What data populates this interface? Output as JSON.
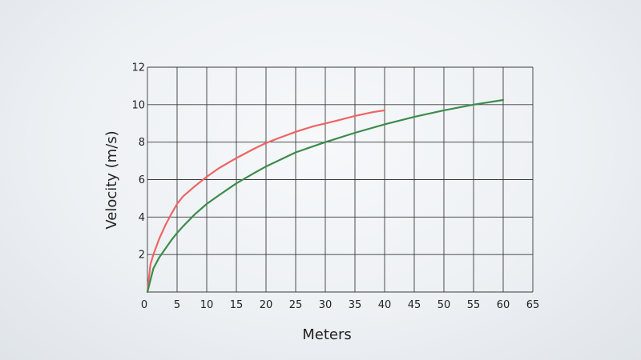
{
  "chart_data": {
    "type": "line",
    "title": "",
    "xlabel": "Meters",
    "ylabel": "Velocity (m/s)",
    "xlim": [
      0,
      65
    ],
    "ylim": [
      0,
      12
    ],
    "x_ticks": [
      0,
      5,
      10,
      15,
      20,
      25,
      30,
      35,
      40,
      45,
      50,
      55,
      60,
      65
    ],
    "y_ticks": [
      2,
      4,
      6,
      8,
      10,
      12
    ],
    "grid": true,
    "legend": "none",
    "series": [
      {
        "color": "#ee6464",
        "x": [
          0,
          0.5,
          1,
          2,
          3,
          4,
          5,
          6,
          8,
          10,
          12,
          15,
          18,
          20,
          22,
          25,
          28,
          30,
          32,
          35,
          38,
          40
        ],
        "y": [
          0,
          1.45,
          2.0,
          2.85,
          3.55,
          4.15,
          4.7,
          5.1,
          5.65,
          6.15,
          6.6,
          7.15,
          7.65,
          7.95,
          8.2,
          8.55,
          8.85,
          9.0,
          9.15,
          9.4,
          9.6,
          9.7
        ]
      },
      {
        "color": "#3c8c4c",
        "x": [
          0,
          1,
          2,
          3,
          4,
          5,
          6,
          8,
          10,
          12,
          15,
          18,
          20,
          25,
          30,
          35,
          40,
          45,
          50,
          55,
          60
        ],
        "y": [
          0,
          1.25,
          1.85,
          2.3,
          2.75,
          3.15,
          3.5,
          4.15,
          4.7,
          5.15,
          5.8,
          6.35,
          6.7,
          7.45,
          8.0,
          8.5,
          8.95,
          9.35,
          9.7,
          10.0,
          10.25
        ]
      }
    ]
  }
}
